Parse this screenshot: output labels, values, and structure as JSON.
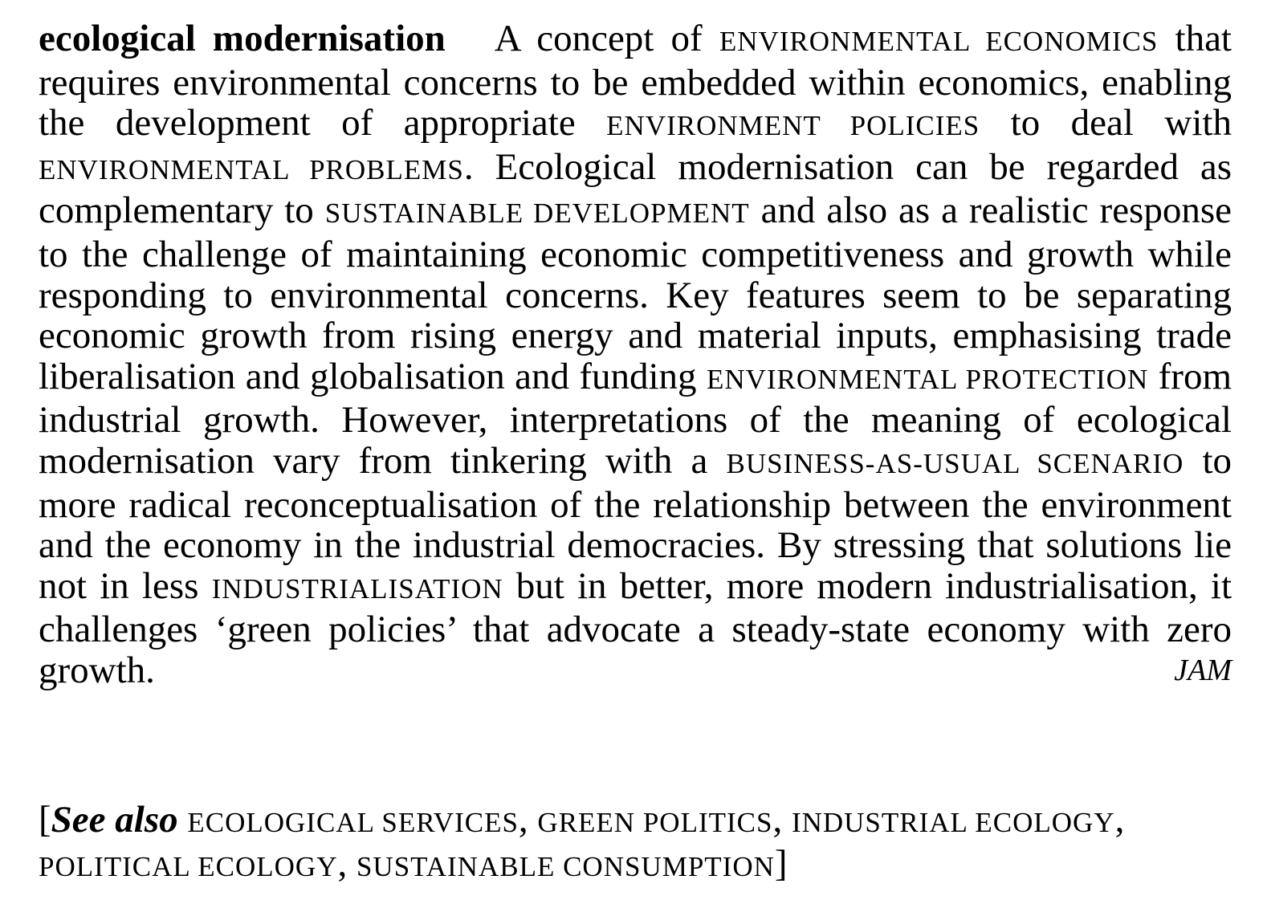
{
  "entry": {
    "headword": "ecological modernisation",
    "segments": [
      {
        "text": "A concept of ",
        "sc": false
      },
      {
        "text": "ENVIRONMENTAL ECONOMICS",
        "sc": true
      },
      {
        "text": " that requires environmental concerns to be embedded within economics, enabling the development of appropriate ",
        "sc": false
      },
      {
        "text": "ENVIRONMENT POLICIES",
        "sc": true
      },
      {
        "text": " to deal with ",
        "sc": false
      },
      {
        "text": "ENVIRONMENTAL PROBLEMS",
        "sc": true
      },
      {
        "text": ". Ecological modernisation can be regarded as complementary to ",
        "sc": false
      },
      {
        "text": "SUSTAINABLE DEVELOPMENT",
        "sc": true
      },
      {
        "text": " and also as a realistic response to the challenge of maintaining economic competitiveness and growth while responding to environmental concerns. Key features seem to be separating economic growth from rising energy and material inputs, emphasising trade liberalisation and globalisation and funding ",
        "sc": false
      },
      {
        "text": "ENVIRONMENTAL PROTECTION",
        "sc": true
      },
      {
        "text": " from industrial growth. However, interpretations of the meaning of ecological modernisation vary from tinkering with a ",
        "sc": false
      },
      {
        "text": "BUSINESS-AS-USUAL SCENARIO",
        "sc": true
      },
      {
        "text": " to more radical reconceptualisation of the relationship between the environment and the economy in the industrial democracies. By stressing that solutions lie not in less ",
        "sc": false
      },
      {
        "text": "INDUSTRIALISATION",
        "sc": true
      },
      {
        "text": " but in better, more modern industrialisation, it challenges ‘green policies’ that advocate a steady-state economy with zero growth.",
        "sc": false
      }
    ],
    "author": "JAM"
  },
  "see_also": {
    "open_bracket": "[",
    "label": "See also",
    "items": [
      "ECOLOGICAL SERVICES",
      "GREEN POLITICS",
      "INDUSTRIAL ECOLOGY",
      "POLITICAL ECOLOGY",
      "SUSTAINABLE CONSUMPTION"
    ],
    "separator": ", ",
    "close_bracket": "]"
  }
}
